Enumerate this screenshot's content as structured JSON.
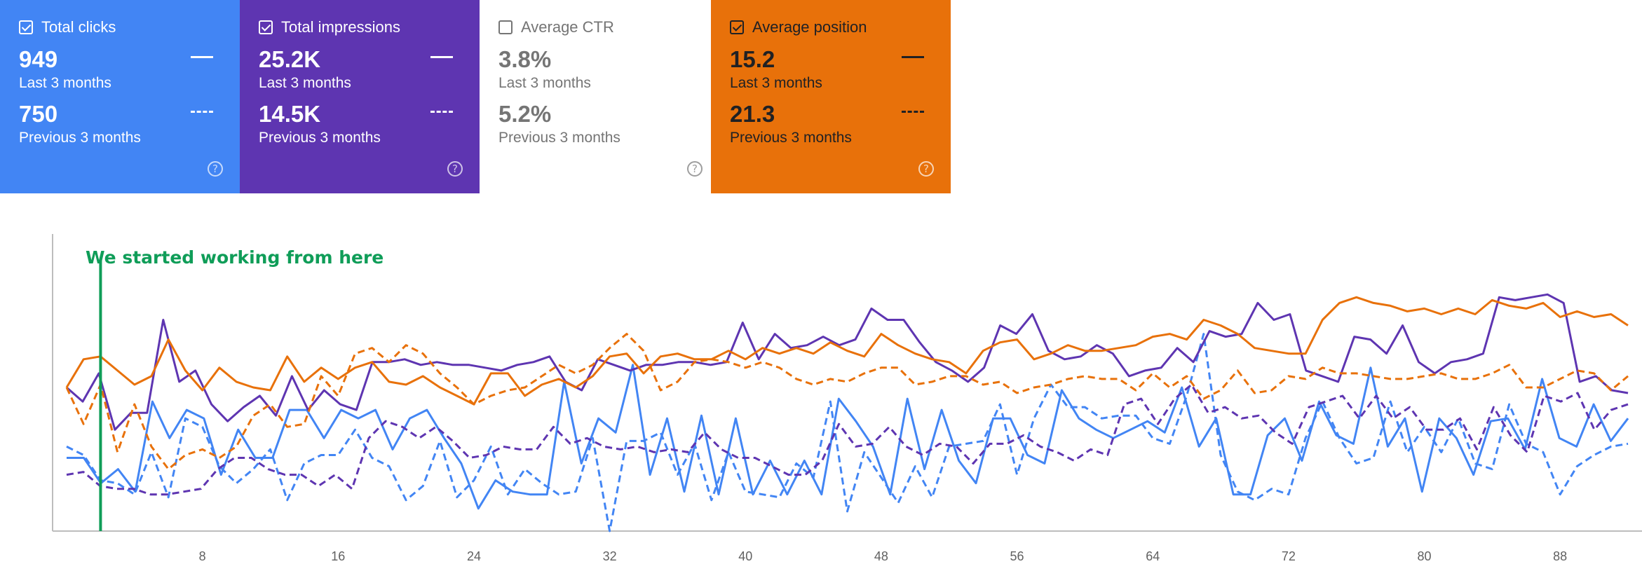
{
  "cards": [
    {
      "id": "clicks",
      "title": "Total clicks",
      "checked": true,
      "color": "#4285f4",
      "value1": "949",
      "label1": "Last 3 months",
      "value2": "750",
      "label2": "Previous 3 months"
    },
    {
      "id": "impressions",
      "title": "Total impressions",
      "checked": true,
      "color": "#5e35b1",
      "value1": "25.2K",
      "label1": "Last 3 months",
      "value2": "14.5K",
      "label2": "Previous 3 months"
    },
    {
      "id": "ctr",
      "title": "Average CTR",
      "checked": false,
      "color": "#ffffff",
      "value1": "3.8%",
      "label1": "Last 3 months",
      "value2": "5.2%",
      "label2": "Previous 3 months"
    },
    {
      "id": "position",
      "title": "Average position",
      "checked": true,
      "color": "#e8710a",
      "value1": "15.2",
      "label1": "Last 3 months",
      "value2": "21.3",
      "label2": "Previous 3 months"
    }
  ],
  "help_glyph": "?",
  "chart_data": {
    "type": "line",
    "title": "",
    "xlabel": "",
    "ylabel": "",
    "xlim": [
      0,
      92
    ],
    "ylim": [
      0,
      100
    ],
    "grid": false,
    "x_ticks": [
      8,
      16,
      24,
      32,
      40,
      48,
      56,
      64,
      72,
      80,
      88
    ],
    "annotation": {
      "text": "We started working from here",
      "x": 2,
      "color": "#0f9d58"
    },
    "series": [
      {
        "name": "Total clicks - Last 3 months",
        "color": "#4285f4",
        "dash": "solid",
        "values": [
          26,
          26,
          17,
          22,
          14,
          46,
          33,
          43,
          40,
          20,
          36,
          26,
          26,
          43,
          43,
          33,
          43,
          40,
          43,
          29,
          40,
          43,
          33,
          24,
          8,
          18,
          14,
          13,
          13,
          53,
          24,
          40,
          35,
          59,
          20,
          40,
          14,
          41,
          13,
          40,
          13,
          25,
          13,
          25,
          13,
          47,
          39,
          30,
          13,
          47,
          22,
          43,
          25,
          17,
          40,
          40,
          27,
          24,
          50,
          40,
          36,
          33,
          36,
          39,
          35,
          51,
          30,
          40,
          13,
          13,
          34,
          40,
          25,
          46,
          34,
          31,
          58,
          30,
          40,
          14,
          40,
          33,
          20,
          39,
          40,
          29,
          54,
          33,
          30,
          45,
          32,
          40
        ]
      },
      {
        "name": "Total clicks - Previous 3 months",
        "color": "#4285f4",
        "dash": "dashed",
        "values": [
          30,
          27,
          18,
          17,
          13,
          28,
          12,
          40,
          37,
          23,
          17,
          22,
          29,
          11,
          24,
          27,
          27,
          36,
          26,
          23,
          11,
          16,
          32,
          12,
          18,
          30,
          13,
          22,
          17,
          13,
          14,
          33,
          0,
          32,
          32,
          35,
          20,
          31,
          11,
          28,
          14,
          13,
          12,
          24,
          19,
          46,
          7,
          28,
          19,
          10,
          23,
          12,
          30,
          31,
          32,
          45,
          20,
          40,
          52,
          44,
          44,
          40,
          41,
          41,
          33,
          31,
          48,
          70,
          27,
          14,
          11,
          15,
          13,
          33,
          46,
          33,
          24,
          26,
          46,
          28,
          37,
          28,
          40,
          24,
          22,
          45,
          31,
          28,
          13,
          23,
          27,
          30,
          31
        ]
      },
      {
        "name": "Total impressions - Last 3 months",
        "color": "#5e35b1",
        "dash": "solid",
        "values": [
          51,
          46,
          56,
          36,
          42,
          42,
          75,
          53,
          57,
          45,
          39,
          44,
          48,
          41,
          55,
          43,
          50,
          45,
          43,
          60,
          60,
          61,
          59,
          60,
          59,
          59,
          58,
          57,
          59,
          60,
          62,
          53,
          50,
          61,
          59,
          57,
          59,
          59,
          60,
          60,
          59,
          60,
          74,
          61,
          70,
          65,
          66,
          69,
          66,
          68,
          79,
          75,
          75,
          67,
          60,
          57,
          53,
          58,
          73,
          70,
          77,
          64,
          61,
          62,
          66,
          63,
          55,
          57,
          58,
          65,
          60,
          71,
          69,
          70,
          81,
          75,
          77,
          57,
          55,
          53,
          69,
          68,
          63,
          73,
          60,
          56,
          60,
          61,
          63,
          83,
          82,
          83,
          84,
          81,
          53,
          55,
          50,
          49
        ]
      },
      {
        "name": "Total impressions - Previous 3 months",
        "color": "#5e35b1",
        "dash": "dashed",
        "values": [
          20,
          21,
          16,
          15,
          15,
          13,
          13,
          14,
          15,
          22,
          26,
          26,
          22,
          20,
          20,
          16,
          20,
          15,
          33,
          39,
          37,
          33,
          37,
          32,
          26,
          27,
          30,
          29,
          29,
          37,
          31,
          33,
          30,
          29,
          30,
          28,
          29,
          28,
          35,
          29,
          26,
          26,
          23,
          20,
          20,
          25,
          38,
          30,
          31,
          37,
          30,
          27,
          31,
          30,
          24,
          31,
          31,
          34,
          30,
          28,
          25,
          29,
          27,
          45,
          47,
          38,
          47,
          52,
          42,
          44,
          40,
          41,
          35,
          31,
          44,
          46,
          48,
          40,
          48,
          40,
          44,
          36,
          36,
          40,
          29,
          44,
          34,
          28,
          48,
          46,
          49,
          36,
          43,
          45
        ]
      },
      {
        "name": "Average position - Last 3 months",
        "color": "#e8710a",
        "dash": "solid",
        "values": [
          51,
          61,
          62,
          57,
          52,
          55,
          68,
          57,
          50,
          58,
          53,
          51,
          50,
          62,
          53,
          58,
          54,
          58,
          60,
          53,
          52,
          55,
          51,
          48,
          45,
          56,
          56,
          48,
          52,
          54,
          51,
          55,
          62,
          63,
          56,
          62,
          63,
          61,
          61,
          64,
          61,
          65,
          63,
          65,
          63,
          67,
          64,
          62,
          70,
          66,
          63,
          61,
          60,
          56,
          64,
          67,
          68,
          61,
          63,
          66,
          64,
          64,
          65,
          66,
          69,
          70,
          68,
          75,
          73,
          70,
          65,
          64,
          63,
          63,
          75,
          81,
          83,
          81,
          80,
          78,
          79,
          77,
          79,
          77,
          82,
          80,
          79,
          81,
          76,
          78,
          76,
          77,
          73
        ]
      },
      {
        "name": "Average position - Previous 3 months",
        "color": "#e8710a",
        "dash": "dashed",
        "values": [
          51,
          38,
          52,
          28,
          45,
          30,
          22,
          27,
          29,
          26,
          30,
          41,
          45,
          37,
          38,
          55,
          48,
          63,
          65,
          60,
          66,
          63,
          56,
          51,
          45,
          48,
          50,
          51,
          55,
          59,
          56,
          59,
          65,
          70,
          64,
          50,
          53,
          60,
          61,
          60,
          58,
          60,
          58,
          54,
          52,
          54,
          53,
          56,
          58,
          58,
          52,
          53,
          55,
          55,
          52,
          53,
          49,
          51,
          52,
          54,
          55,
          54,
          54,
          50,
          56,
          51,
          55,
          47,
          50,
          57,
          49,
          50,
          55,
          54,
          58,
          56,
          56,
          55,
          54,
          54,
          55,
          56,
          54,
          54,
          56,
          59,
          51,
          51,
          54,
          57,
          56,
          50,
          55
        ]
      }
    ]
  }
}
